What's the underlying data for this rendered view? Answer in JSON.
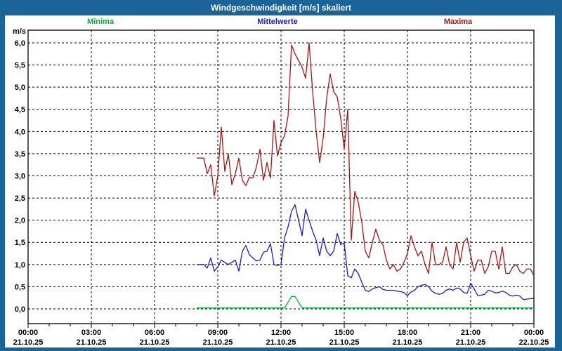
{
  "window": {
    "title": "Windgeschwindigkeit [m/s] skaliert"
  },
  "legend": {
    "minima": {
      "label": "Minima",
      "color": "#00b33c"
    },
    "mittelwerte": {
      "label": "Mittelwerte",
      "color": "#1a1acc"
    },
    "maxima": {
      "label": "Maxima",
      "color": "#b01212"
    }
  },
  "chart_data": {
    "type": "line",
    "title": "Windgeschwindigkeit [m/s] skaliert",
    "xlabel": "",
    "ylabel": "m/s",
    "ylim": [
      -0.33,
      6.3
    ],
    "grid": true,
    "legend_position": "top",
    "x_unit": "minutes since 21.10.25 00:00",
    "x_axis": {
      "tick_minutes": [
        0,
        180,
        360,
        540,
        720,
        900,
        1080,
        1260,
        1440
      ],
      "tick_times": [
        "00:00",
        "03:00",
        "06:00",
        "09:00",
        "12:00",
        "15:00",
        "18:00",
        "21:00",
        "00:00"
      ],
      "tick_dates": [
        "21.10.25",
        "21.10.25",
        "21.10.25",
        "21.10.25",
        "21.10.25",
        "21.10.25",
        "21.10.25",
        "21.10.25",
        "22.10.25"
      ],
      "grid_minutes": [
        180,
        360,
        540,
        720,
        900,
        1080,
        1260
      ],
      "minor_tick_every_min": 60
    },
    "y_axis": {
      "tick_values": [
        0,
        0.5,
        1,
        1.5,
        2,
        2.5,
        3,
        3.5,
        4,
        4.5,
        5,
        5.5,
        6
      ],
      "tick_labels": [
        "0,0",
        "0,5",
        "1,0",
        "1,5",
        "2,0",
        "2,5",
        "3,0",
        "3,5",
        "4,0",
        "4,5",
        "5,0",
        "5,5",
        "6,0"
      ],
      "unit_label": "m/s"
    },
    "series_x_start_min": 480,
    "series_x_step_min": 10,
    "series": [
      {
        "name": "Minima",
        "color": "#00b33c",
        "values": [
          0.02,
          0.02,
          0.02,
          0.02,
          0.02,
          0.02,
          0.02,
          0.02,
          0.02,
          0.02,
          0.02,
          0.02,
          0.02,
          0.02,
          0.02,
          0.02,
          0.02,
          0.02,
          0.02,
          0.02,
          0.02,
          0.02,
          0.02,
          0.02,
          0.02,
          0.02,
          0.15,
          0.28,
          0.28,
          0.15,
          0.02,
          0.02,
          0.02,
          0.02,
          0.02,
          0.02,
          0.02,
          0.02,
          0.02,
          0.02,
          0.02,
          0.02,
          0.02,
          0.02,
          0.02,
          0.02,
          0.02,
          0.02,
          0.02,
          0.02,
          0.02,
          0.02,
          0.02,
          0.02,
          0.02,
          0.02,
          0.02,
          0.02,
          0.02,
          0.02,
          0.02,
          0.02,
          0.02,
          0.02,
          0.02,
          0.02,
          0.02,
          0.02,
          0.02,
          0.02,
          0.02,
          0.02,
          0.02,
          0.02,
          0.02,
          0.02,
          0.02,
          0.02,
          0.02,
          0.02,
          0.02,
          0.02,
          0.02,
          0.02,
          0.02,
          0.02,
          0.02,
          0.02,
          0.02,
          0.02,
          0.02,
          0.02,
          0.02,
          0.02,
          0.02,
          0.02,
          0.02
        ]
      },
      {
        "name": "Mittelwerte",
        "color": "#1a1acc",
        "values": [
          1.0,
          1.0,
          1.0,
          0.92,
          1.15,
          0.85,
          0.95,
          1.1,
          1.05,
          1.0,
          1.05,
          1.1,
          0.85,
          1.3,
          1.43,
          1.22,
          1.15,
          1.08,
          1.1,
          1.28,
          1.3,
          1.47,
          1.0,
          0.98,
          1.0,
          1.6,
          1.85,
          2.2,
          2.35,
          2.0,
          1.65,
          2.25,
          2.0,
          1.75,
          1.55,
          1.2,
          1.6,
          1.3,
          1.2,
          1.3,
          1.7,
          1.45,
          1.48,
          0.75,
          0.7,
          0.9,
          0.8,
          0.6,
          0.42,
          0.39,
          0.45,
          0.48,
          0.5,
          0.44,
          0.42,
          0.42,
          0.42,
          0.4,
          0.39,
          0.37,
          0.3,
          0.38,
          0.42,
          0.5,
          0.53,
          0.55,
          0.5,
          0.4,
          0.35,
          0.33,
          0.35,
          0.42,
          0.45,
          0.42,
          0.47,
          0.45,
          0.37,
          0.35,
          0.58,
          0.45,
          0.3,
          0.31,
          0.33,
          0.42,
          0.4,
          0.36,
          0.37,
          0.4,
          0.37,
          0.31,
          0.29,
          0.31,
          0.29,
          0.21,
          0.22,
          0.23,
          0.24
        ]
      },
      {
        "name": "Maxima",
        "color": "#b01212",
        "values": [
          3.4,
          3.4,
          3.4,
          3.05,
          3.25,
          2.55,
          3.0,
          4.1,
          3.1,
          3.5,
          2.8,
          3.05,
          3.4,
          2.9,
          2.78,
          2.97,
          2.95,
          3.2,
          3.6,
          2.9,
          3.3,
          2.95,
          4.25,
          3.45,
          3.75,
          3.9,
          4.35,
          5.95,
          5.75,
          5.6,
          5.45,
          5.2,
          6.0,
          4.9,
          4.0,
          3.3,
          3.85,
          4.75,
          5.3,
          4.9,
          4.78,
          4.3,
          3.6,
          4.5,
          1.55,
          2.65,
          2.4,
          1.95,
          1.3,
          1.15,
          1.5,
          1.8,
          1.55,
          1.45,
          1.1,
          0.9,
          1.0,
          0.85,
          0.9,
          1.05,
          1.25,
          1.65,
          1.4,
          1.2,
          1.3,
          1.0,
          0.8,
          1.5,
          1.0,
          1.0,
          1.05,
          1.4,
          1.0,
          0.9,
          1.5,
          1.05,
          1.5,
          1.6,
          1.2,
          0.85,
          1.1,
          1.1,
          0.8,
          0.95,
          1.3,
          1.3,
          0.9,
          1.4,
          0.8,
          0.8,
          0.95,
          1.0,
          0.85,
          0.8,
          0.9,
          0.9,
          0.75
        ]
      }
    ]
  }
}
